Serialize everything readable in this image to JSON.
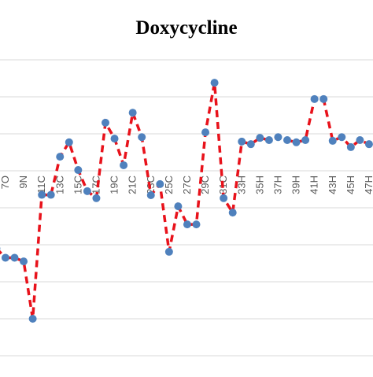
{
  "chart_data": {
    "type": "line",
    "title": "Doxycycline",
    "categories": [
      null,
      "7O",
      null,
      "9N",
      null,
      "11C",
      null,
      "13C",
      null,
      "15C",
      null,
      "17C",
      null,
      "19C",
      null,
      "21C",
      null,
      "23C",
      null,
      "25C",
      null,
      "27C",
      null,
      "29C",
      null,
      "31C",
      null,
      "33H",
      null,
      "35H",
      null,
      "37H",
      null,
      "39H",
      null,
      "41H",
      null,
      "43H",
      null,
      "45H",
      null,
      "47H"
    ],
    "values": [
      -2.1,
      -2.35,
      -2.35,
      -2.45,
      -4.0,
      -0.65,
      -0.65,
      0.38,
      0.77,
      0.02,
      -0.55,
      -0.74,
      1.3,
      0.87,
      0.15,
      1.57,
      0.91,
      -0.66,
      -0.36,
      -2.19,
      -0.96,
      -1.45,
      -1.45,
      1.04,
      2.38,
      -0.74,
      -1.13,
      0.79,
      0.72,
      0.89,
      0.83,
      0.91,
      0.83,
      0.77,
      0.83,
      1.94,
      1.94,
      0.81,
      0.91,
      0.64,
      0.83,
      0.72
    ],
    "color": "#e8121b",
    "marker_color": "#4f81bd",
    "ylim": [
      -5.4,
      3.5
    ],
    "yticks": [
      -5,
      -4,
      -3,
      -2,
      -1,
      0,
      1,
      2,
      3
    ],
    "grid": true
  }
}
